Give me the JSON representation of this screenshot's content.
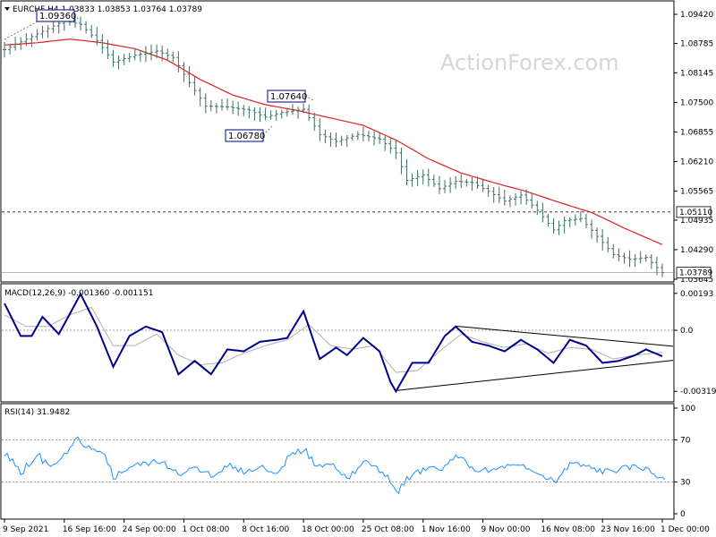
{
  "watermark": "ActionForex.com",
  "chart_data": [
    {
      "type": "ohlc",
      "title": "EURCHF,H4  1.03833 1.03853 1.03764 1.03789",
      "symbol": "EURCHF,H4",
      "last_ohlc": [
        1.03833,
        1.03853,
        1.03764,
        1.03789
      ],
      "current_price": 1.03789,
      "current_price_label": "1.03789",
      "ylim": [
        1.03645,
        1.0942
      ],
      "y_ticks": [
        1.0942,
        1.08785,
        1.08145,
        1.075,
        1.06855,
        1.0621,
        1.05565,
        1.04935,
        1.0429,
        1.03645
      ],
      "y_tick_labels": [
        "1.09420",
        "1.08785",
        "1.08145",
        "1.07500",
        "1.06855",
        "1.06210",
        "1.05565",
        "1.04935",
        "1.04290",
        "1.03645"
      ],
      "horizontal_levels": [
        {
          "value": 1.0511,
          "label": "1.05110",
          "style": "dashed"
        }
      ],
      "annotations": [
        {
          "label": "1.09360",
          "x": "14 Sep 2021 (approx)",
          "y": 1.0936
        },
        {
          "label": "1.07640",
          "x": "20 Oct 2021 (approx)",
          "y": 1.0764
        },
        {
          "label": "1.06780",
          "x": "13 Oct 2021 (approx)",
          "y": 1.0678
        }
      ],
      "series": [
        {
          "name": "price",
          "kind": "ohlc",
          "close_anchors": [
            [
              0,
              1.0865
            ],
            [
              3,
              1.0882
            ],
            [
              7,
              1.0905
            ],
            [
              11,
              1.0928
            ],
            [
              14,
              1.092
            ],
            [
              17,
              1.0885
            ],
            [
              20,
              1.0838
            ],
            [
              24,
              1.0853
            ],
            [
              28,
              1.0862
            ],
            [
              31,
              1.0848
            ],
            [
              34,
              1.0793
            ],
            [
              37,
              1.0742
            ],
            [
              41,
              1.074
            ],
            [
              45,
              1.0733
            ],
            [
              48,
              1.0718
            ],
            [
              51,
              1.0728
            ],
            [
              55,
              1.0735
            ],
            [
              58,
              1.068
            ],
            [
              61,
              1.0665
            ],
            [
              65,
              1.068
            ],
            [
              69,
              1.067
            ],
            [
              72,
              1.064
            ],
            [
              74,
              1.058
            ],
            [
              77,
              1.0592
            ],
            [
              80,
              1.0562
            ],
            [
              83,
              1.0578
            ],
            [
              86,
              1.0575
            ],
            [
              89,
              1.0556
            ],
            [
              92,
              1.0535
            ],
            [
              95,
              1.0548
            ],
            [
              98,
              1.0515
            ],
            [
              101,
              1.0472
            ],
            [
              103,
              1.0492
            ],
            [
              106,
              1.0497
            ],
            [
              109,
              1.0458
            ],
            [
              112,
              1.0418
            ],
            [
              115,
              1.0408
            ],
            [
              118,
              1.0412
            ],
            [
              121,
              1.0379
            ]
          ]
        },
        {
          "name": "moving average",
          "kind": "line",
          "color": "#e02020",
          "anchors": [
            [
              0,
              1.0875
            ],
            [
              6,
              1.088
            ],
            [
              12,
              1.0888
            ],
            [
              18,
              1.088
            ],
            [
              24,
              1.0867
            ],
            [
              30,
              1.0842
            ],
            [
              36,
              1.08
            ],
            [
              42,
              1.0766
            ],
            [
              48,
              1.0745
            ],
            [
              54,
              1.0732
            ],
            [
              60,
              1.0716
            ],
            [
              66,
              1.07
            ],
            [
              72,
              1.0668
            ],
            [
              78,
              1.0627
            ],
            [
              84,
              1.0596
            ],
            [
              90,
              1.0575
            ],
            [
              96,
              1.0556
            ],
            [
              102,
              1.0532
            ],
            [
              108,
              1.051
            ],
            [
              114,
              1.0476
            ],
            [
              121,
              1.044
            ]
          ]
        }
      ]
    },
    {
      "type": "line",
      "title": "MACD(12,26,9) -0.001360 -0.001151",
      "ylim": [
        -0.0036,
        0.0022
      ],
      "y_ticks": [
        0.00193,
        0.0,
        -0.00319
      ],
      "y_tick_labels": [
        "0.00193",
        "0.0",
        "-0.00319"
      ],
      "zero_line": 0.0,
      "trendlines": [
        {
          "from": [
            72,
            -0.00315
          ],
          "to": [
            121,
            -0.00163
          ]
        },
        {
          "from": [
            83,
            0.00022
          ],
          "to": [
            121,
            -0.00078
          ]
        }
      ],
      "series": [
        {
          "name": "MACD line",
          "values_last": -0.00136,
          "color": "#00008b",
          "anchors": [
            [
              0,
              0.0014
            ],
            [
              3,
              -0.0003
            ],
            [
              5,
              -0.0003
            ],
            [
              7,
              0.0007
            ],
            [
              10,
              -0.0002
            ],
            [
              14,
              0.0019
            ],
            [
              17,
              0.0002
            ],
            [
              20,
              -0.0019
            ],
            [
              23,
              -0.0003
            ],
            [
              26,
              0.0002
            ],
            [
              29,
              -0.0001
            ],
            [
              32,
              -0.0023
            ],
            [
              35,
              -0.0016
            ],
            [
              38,
              -0.0023
            ],
            [
              41,
              -0.001
            ],
            [
              44,
              -0.0011
            ],
            [
              47,
              -0.0006
            ],
            [
              50,
              -0.0005
            ],
            [
              52,
              -0.0004
            ],
            [
              55,
              0.001
            ],
            [
              58,
              -0.0015
            ],
            [
              61,
              -0.0009
            ],
            [
              63,
              -0.0013
            ],
            [
              66,
              -0.0004
            ],
            [
              69,
              -0.0011
            ],
            [
              71,
              -0.0027
            ],
            [
              72,
              -0.0032
            ],
            [
              75,
              -0.0017
            ],
            [
              78,
              -0.0017
            ],
            [
              81,
              -0.0003
            ],
            [
              83,
              0.0002
            ],
            [
              86,
              -0.0006
            ],
            [
              89,
              -0.0008
            ],
            [
              92,
              -0.0011
            ],
            [
              95,
              -0.0005
            ],
            [
              98,
              -0.001
            ],
            [
              101,
              -0.0017
            ],
            [
              104,
              -0.0005
            ],
            [
              107,
              -0.0008
            ],
            [
              110,
              -0.0017
            ],
            [
              113,
              -0.0016
            ],
            [
              116,
              -0.0013
            ],
            [
              118,
              -0.001
            ],
            [
              121,
              -0.00136
            ]
          ]
        },
        {
          "name": "signal",
          "values_last": -0.001151,
          "color": "#b0b0b0",
          "anchors": [
            [
              0,
              0.0008
            ],
            [
              4,
              0.0002
            ],
            [
              8,
              0.0002
            ],
            [
              12,
              0.0008
            ],
            [
              16,
              0.0012
            ],
            [
              20,
              -0.0008
            ],
            [
              24,
              -0.0008
            ],
            [
              28,
              -0.0002
            ],
            [
              32,
              -0.0013
            ],
            [
              36,
              -0.0018
            ],
            [
              40,
              -0.0017
            ],
            [
              44,
              -0.0012
            ],
            [
              48,
              -0.0008
            ],
            [
              52,
              -0.0005
            ],
            [
              56,
              0.0003
            ],
            [
              60,
              -0.0008
            ],
            [
              64,
              -0.001
            ],
            [
              68,
              -0.0008
            ],
            [
              72,
              -0.0022
            ],
            [
              76,
              -0.0021
            ],
            [
              80,
              -0.0011
            ],
            [
              84,
              -0.0002
            ],
            [
              88,
              -0.0006
            ],
            [
              92,
              -0.0009
            ],
            [
              96,
              -0.0007
            ],
            [
              100,
              -0.0012
            ],
            [
              104,
              -0.0009
            ],
            [
              108,
              -0.001
            ],
            [
              112,
              -0.0015
            ],
            [
              116,
              -0.0013
            ],
            [
              121,
              -0.00115
            ]
          ]
        }
      ]
    },
    {
      "type": "line",
      "title": "RSI(14) 31.9482",
      "ylim": [
        0,
        100
      ],
      "y_ticks": [
        100,
        70,
        30,
        0
      ],
      "y_tick_labels": [
        "100",
        "70",
        "30",
        "0"
      ],
      "levels": [
        70,
        30
      ],
      "series": [
        {
          "name": "RSI",
          "values_last": 31.9482,
          "color": "#1e90ff",
          "anchors": [
            [
              0,
              55
            ],
            [
              3,
              40
            ],
            [
              6,
              55
            ],
            [
              8,
              45
            ],
            [
              11,
              55
            ],
            [
              13,
              70
            ],
            [
              15,
              62
            ],
            [
              18,
              55
            ],
            [
              20,
              35
            ],
            [
              23,
              45
            ],
            [
              26,
              48
            ],
            [
              29,
              50
            ],
            [
              32,
              35
            ],
            [
              35,
              45
            ],
            [
              38,
              35
            ],
            [
              41,
              46
            ],
            [
              44,
              40
            ],
            [
              47,
              45
            ],
            [
              50,
              38
            ],
            [
              52,
              55
            ],
            [
              55,
              60
            ],
            [
              57,
              46
            ],
            [
              60,
              45
            ],
            [
              63,
              35
            ],
            [
              66,
              50
            ],
            [
              69,
              40
            ],
            [
              71,
              28
            ],
            [
              72,
              22
            ],
            [
              75,
              38
            ],
            [
              78,
              42
            ],
            [
              81,
              45
            ],
            [
              83,
              55
            ],
            [
              86,
              42
            ],
            [
              89,
              40
            ],
            [
              92,
              45
            ],
            [
              95,
              44
            ],
            [
              98,
              38
            ],
            [
              101,
              30
            ],
            [
              104,
              48
            ],
            [
              107,
              44
            ],
            [
              110,
              40
            ],
            [
              113,
              42
            ],
            [
              116,
              45
            ],
            [
              118,
              42
            ],
            [
              121,
              32
            ]
          ]
        }
      ]
    }
  ],
  "x_axis": {
    "labels": [
      "9 Sep 2021",
      "16 Sep 16:00",
      "24 Sep 00:00",
      "1 Oct 08:00",
      "8 Oct 16:00",
      "18 Oct 00:00",
      "25 Oct 08:00",
      "1 Nov 16:00",
      "9 Nov 00:00",
      "16 Nov 08:00",
      "23 Nov 16:00",
      "1 Dec 00:00"
    ],
    "label_bar_index": [
      0,
      11,
      22,
      33,
      44,
      55,
      66,
      77,
      88,
      99,
      110,
      121
    ]
  },
  "colors": {
    "ma": "#e02020",
    "macd": "#00008b",
    "signal": "#b0b0b0",
    "rsi": "#1e90ff",
    "bars": "#3d6f64",
    "price_box_bg": "#ffffff"
  }
}
